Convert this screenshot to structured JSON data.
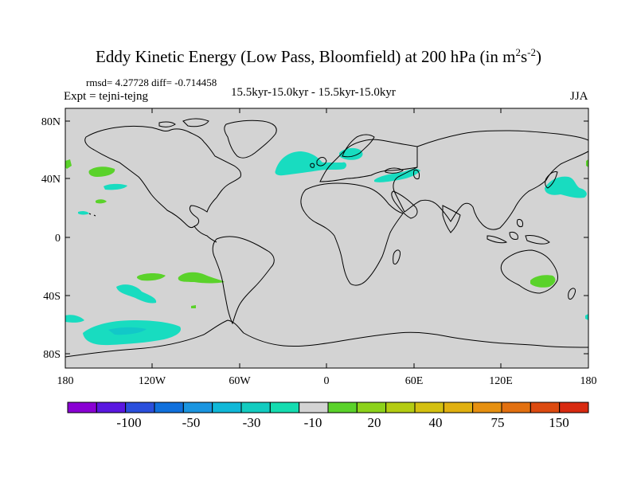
{
  "title": {
    "main": "Eddy Kinetic Energy (Low Pass, Bloomfield) at 200 hPa (in m",
    "exp1": "2",
    "mid": "s",
    "exp2": "-2",
    "close": ")"
  },
  "stats": "rmsd= 4.27728 diff= -0.714458",
  "experiment": "Expt = tejni-tejng",
  "period": "15.5kyr-15.0kyr - 15.5kyr-15.0kyr",
  "season": "JJA",
  "map": {
    "lat_ticks": [
      "80N",
      "40N",
      "0",
      "40S",
      "80S"
    ],
    "lon_ticks": [
      "180",
      "120W",
      "60W",
      "0",
      "60E",
      "120E",
      "180"
    ],
    "land_color": "#d3d3d3",
    "coast_color": "#000000",
    "anomaly_regions": [
      {
        "name": "north-atlantic-band",
        "category": "-10",
        "center": [
          -25,
          50
        ]
      },
      {
        "name": "scandinavia-baltic",
        "category": "-10",
        "center": [
          20,
          60
        ]
      },
      {
        "name": "mediterranean-caspian",
        "category": "-10",
        "center": [
          45,
          40
        ]
      },
      {
        "name": "nw-pacific",
        "category": "-10",
        "center": [
          165,
          38
        ]
      },
      {
        "name": "ne-pacific-small",
        "category": "-10",
        "center": [
          -142,
          35
        ]
      },
      {
        "name": "southern-pacific-band",
        "category": "-10",
        "center": [
          -135,
          -68
        ]
      },
      {
        "name": "south-pacific-patch",
        "category": "-10",
        "center": [
          -135,
          -40
        ]
      },
      {
        "name": "north-pacific-green",
        "category": "20",
        "center": [
          -155,
          45
        ]
      },
      {
        "name": "south-pacific-green",
        "category": "20",
        "center": [
          -102,
          -27
        ]
      },
      {
        "name": "south-america-west-green",
        "category": "20",
        "center": [
          -78,
          -28
        ]
      },
      {
        "name": "australia-green",
        "category": "20",
        "center": [
          148,
          -30
        ]
      }
    ]
  },
  "colorbar": {
    "labels": [
      "-100",
      "-50",
      "-30",
      "-10",
      "20",
      "40",
      "75",
      "150"
    ],
    "colors": [
      "#8a00d4",
      "#5a17e0",
      "#2a4fdc",
      "#1070dc",
      "#1a95e0",
      "#10b8d8",
      "#12ccc0",
      "#15dcb0",
      "#d3d3d3",
      "#5ad22a",
      "#8cd21a",
      "#b4cc12",
      "#d4c010",
      "#e0b010",
      "#e69010",
      "#e27010",
      "#dc4a10",
      "#d82a10"
    ]
  }
}
